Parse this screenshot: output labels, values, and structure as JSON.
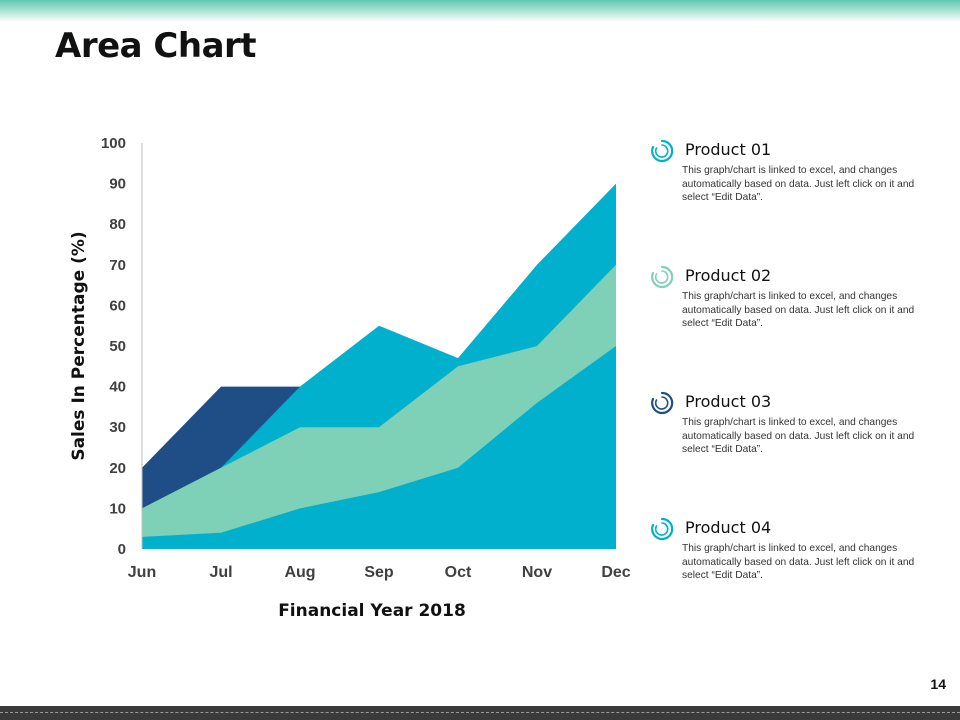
{
  "slide": {
    "title": "Area Chart",
    "page_number": "14"
  },
  "chart_data": {
    "type": "area",
    "stacked": false,
    "categories": [
      "Jun",
      "Jul",
      "Aug",
      "Sep",
      "Oct",
      "Nov",
      "Dec"
    ],
    "xlabel": "Financial Year 2018",
    "ylabel": "Sales In Percentage (%)",
    "ylim": [
      0,
      100
    ],
    "yticks": [
      0,
      10,
      20,
      30,
      40,
      50,
      60,
      70,
      80,
      90,
      100
    ],
    "grid": false,
    "series": [
      {
        "name": "Product 03",
        "color": "#1f4e87",
        "values": [
          20,
          40,
          40,
          30,
          30,
          30,
          30
        ]
      },
      {
        "name": "Product 01",
        "color": "#00b0cc",
        "values": [
          10,
          20,
          40,
          55,
          47,
          70,
          90
        ]
      },
      {
        "name": "Product 02",
        "color": "#7ed0b6",
        "values": [
          10,
          20,
          30,
          30,
          45,
          50,
          70
        ]
      },
      {
        "name": "Product 04",
        "color": "#00b0cc",
        "values": [
          3,
          4,
          10,
          14,
          20,
          36,
          50
        ]
      }
    ]
  },
  "legend": {
    "items": [
      {
        "name": "Product 01",
        "color": "#00b0cc",
        "icon": "swirl-icon",
        "desc": "This graph/chart is linked to excel, and changes automatically based on data. Just left click on it and select “Edit Data”."
      },
      {
        "name": "Product 02",
        "color": "#7ed0b6",
        "icon": "swirl-icon",
        "desc": "This graph/chart is linked to excel, and changes automatically based on data. Just left click on it and select “Edit Data”."
      },
      {
        "name": "Product 03",
        "color": "#1f4e87",
        "icon": "swirl-icon",
        "desc": "This graph/chart is linked to excel, and changes automatically based on data. Just left click on it and select “Edit Data”."
      },
      {
        "name": "Product 04",
        "color": "#00b0cc",
        "icon": "swirl-icon",
        "desc": "This graph/chart is linked to excel, and changes automatically based on data. Just left click on it and select “Edit Data”."
      }
    ]
  }
}
